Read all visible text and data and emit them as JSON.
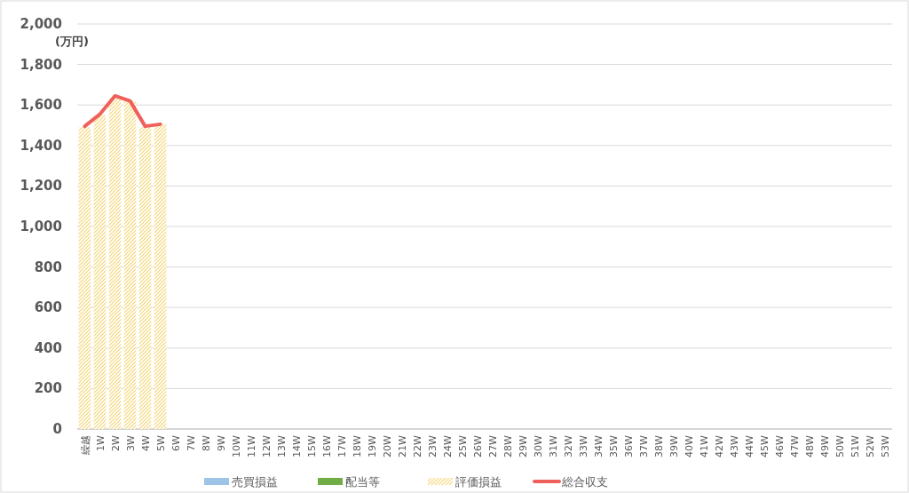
{
  "chart_data": {
    "type": "bar",
    "ylabel": "(万円)",
    "categories": [
      "繰越",
      "1W",
      "2W",
      "3W",
      "4W",
      "5W",
      "6W",
      "7W",
      "8W",
      "9W",
      "10W",
      "11W",
      "12W",
      "13W",
      "14W",
      "15W",
      "16W",
      "17W",
      "18W",
      "19W",
      "20W",
      "21W",
      "22W",
      "23W",
      "24W",
      "25W",
      "26W",
      "27W",
      "28W",
      "29W",
      "30W",
      "31W",
      "32W",
      "33W",
      "34W",
      "35W",
      "36W",
      "37W",
      "38W",
      "39W",
      "40W",
      "41W",
      "42W",
      "43W",
      "44W",
      "45W",
      "46W",
      "47W",
      "48W",
      "49W",
      "50W",
      "51W",
      "52W",
      "53W"
    ],
    "series": [
      {
        "name": "売買損益",
        "color": "#9dc3e6",
        "values": [
          null,
          null,
          null,
          null,
          null,
          null,
          null,
          null,
          null,
          null,
          null,
          null,
          null,
          null,
          null,
          null,
          null,
          null,
          null,
          null,
          null,
          null,
          null,
          null,
          null,
          null,
          null,
          null,
          null,
          null,
          null,
          null,
          null,
          null,
          null,
          null,
          null,
          null,
          null,
          null,
          null,
          null,
          null,
          null,
          null,
          null,
          null,
          null,
          null,
          null,
          null,
          null,
          null,
          null
        ]
      },
      {
        "name": "配当等",
        "color": "#70ad47",
        "values": [
          null,
          null,
          null,
          null,
          null,
          null,
          null,
          null,
          null,
          null,
          null,
          null,
          null,
          null,
          null,
          null,
          null,
          null,
          null,
          null,
          null,
          null,
          null,
          null,
          null,
          null,
          null,
          null,
          null,
          null,
          null,
          null,
          null,
          null,
          null,
          null,
          null,
          null,
          null,
          null,
          null,
          null,
          null,
          null,
          null,
          null,
          null,
          null,
          null,
          null,
          null,
          null,
          null,
          null
        ]
      },
      {
        "name": "評価損益",
        "color": "#f5d77a",
        "values": [
          1490,
          1550,
          1635,
          1620,
          1490,
          1505,
          null,
          null,
          null,
          null,
          null,
          null,
          null,
          null,
          null,
          null,
          null,
          null,
          null,
          null,
          null,
          null,
          null,
          null,
          null,
          null,
          null,
          null,
          null,
          null,
          null,
          null,
          null,
          null,
          null,
          null,
          null,
          null,
          null,
          null,
          null,
          null,
          null,
          null,
          null,
          null,
          null,
          null,
          null,
          null,
          null,
          null,
          null,
          null
        ]
      },
      {
        "name": "総合収支",
        "type": "line",
        "color": "#f0605a",
        "values": [
          1495,
          1555,
          1645,
          1620,
          1495,
          1505,
          null,
          null,
          null,
          null,
          null,
          null,
          null,
          null,
          null,
          null,
          null,
          null,
          null,
          null,
          null,
          null,
          null,
          null,
          null,
          null,
          null,
          null,
          null,
          null,
          null,
          null,
          null,
          null,
          null,
          null,
          null,
          null,
          null,
          null,
          null,
          null,
          null,
          null,
          null,
          null,
          null,
          null,
          null,
          null,
          null,
          null,
          null,
          null
        ]
      }
    ],
    "ylim": [
      0,
      2000
    ],
    "yticks": [
      {
        "value": 0,
        "label": "0"
      },
      {
        "value": 200,
        "label": "200"
      },
      {
        "value": 400,
        "label": "400"
      },
      {
        "value": 600,
        "label": "600"
      },
      {
        "value": 800,
        "label": "800"
      },
      {
        "value": 1000,
        "label": "1,000"
      },
      {
        "value": 1200,
        "label": "1,200"
      },
      {
        "value": 1400,
        "label": "1,400"
      },
      {
        "value": 1600,
        "label": "1,600"
      },
      {
        "value": 1800,
        "label": "1,800"
      },
      {
        "value": 2000,
        "label": "2,000"
      }
    ],
    "grid": "y",
    "legend": "bottom"
  }
}
